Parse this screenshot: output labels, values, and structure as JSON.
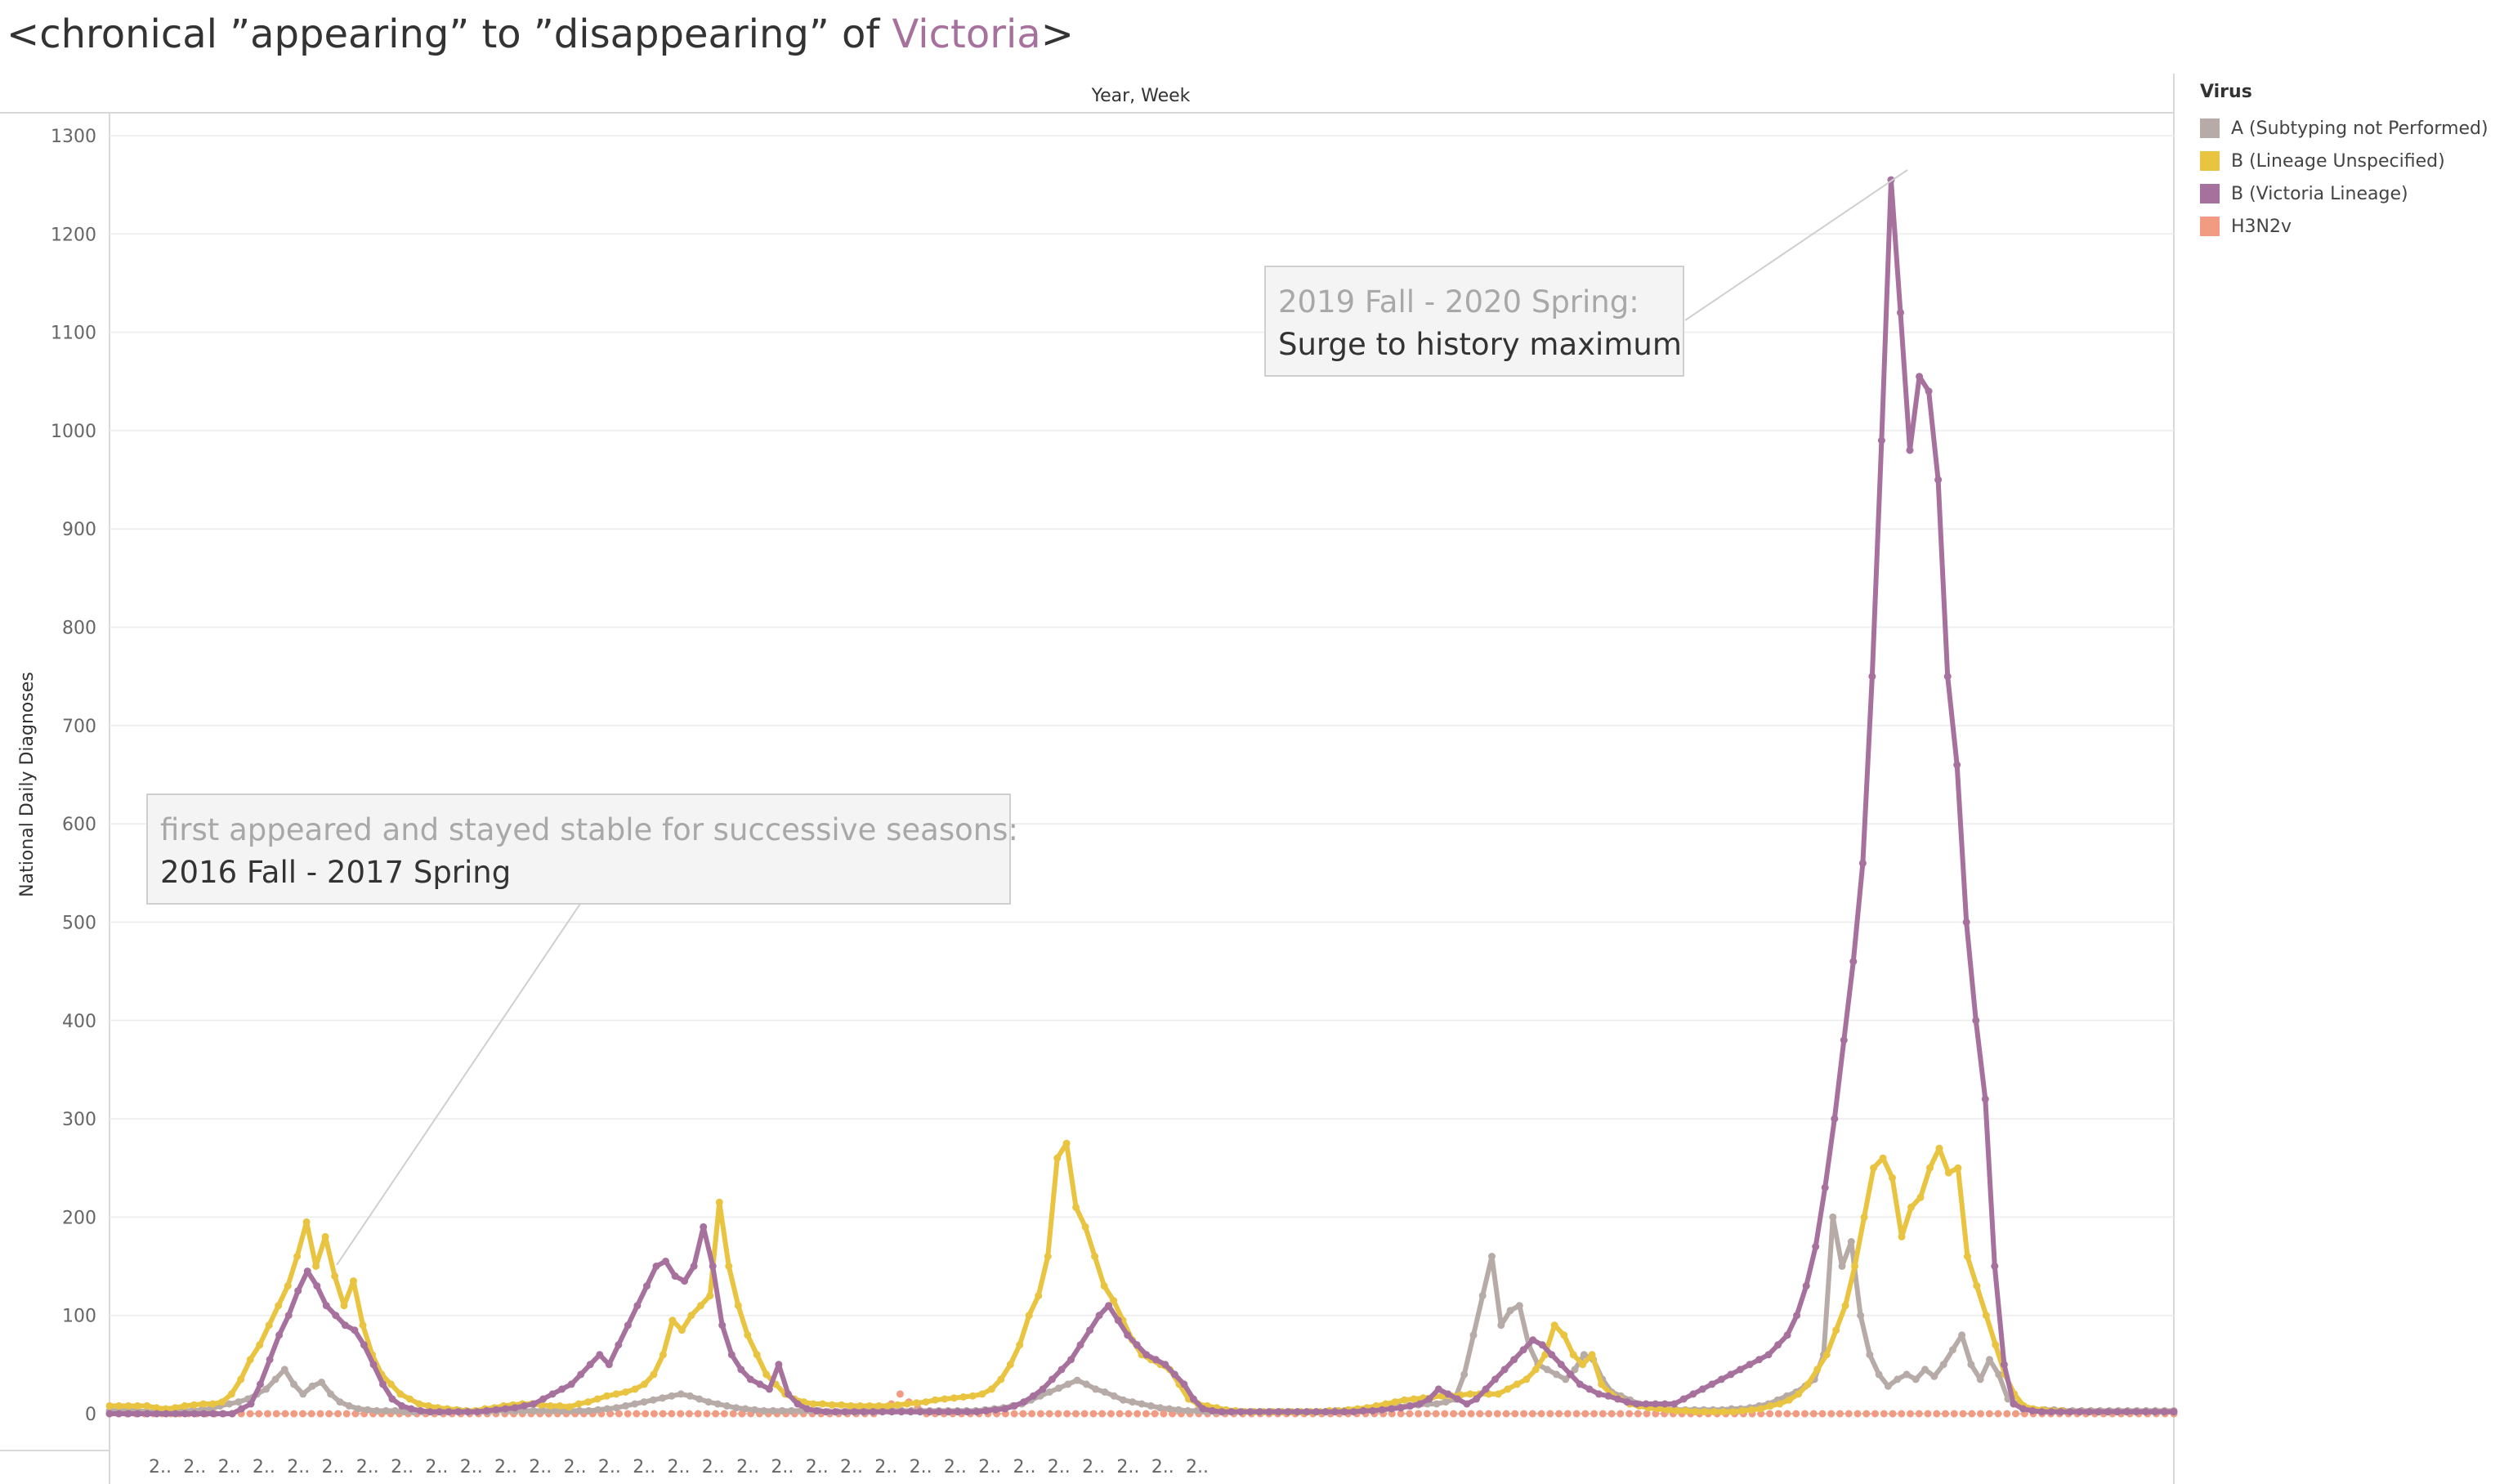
{
  "title": {
    "prefix": "<chronical ”appearing” to ”disappearing” of ",
    "highlight": "Victoria",
    "suffix": ">",
    "highlight_color": "#a7719e"
  },
  "legend": {
    "title": "Virus"
  },
  "annotations": {
    "a1_line1": "2019 Fall - 2020 Spring:",
    "a1_line2": "Surge to history maximum",
    "a2_line1": "first appeared and stayed stable for successive seasons:",
    "a2_line2": "2016 Fall - 2017 Spring"
  },
  "chart_data": {
    "type": "line",
    "title": "",
    "xlabel": "Year, Week",
    "ylabel": "National Daily Diagnoses",
    "ylim": [
      0,
      1300
    ],
    "yticks": [
      0,
      100,
      200,
      300,
      400,
      500,
      600,
      700,
      800,
      900,
      1000,
      1100,
      1200,
      1300
    ],
    "x_tick_label": "2..",
    "x_tick_count": 31,
    "grid": true,
    "legend_position": "right",
    "series": [
      {
        "name": "A (Subtyping not Performed)",
        "color": "#b7aba7",
        "values": [
          3,
          3,
          3,
          3,
          2,
          2,
          3,
          2,
          3,
          3,
          4,
          5,
          8,
          10,
          12,
          15,
          20,
          25,
          35,
          45,
          30,
          20,
          28,
          32,
          20,
          12,
          8,
          5,
          4,
          3,
          3,
          3,
          2,
          2,
          2,
          2,
          2,
          3,
          3,
          2,
          2,
          2,
          3,
          3,
          3,
          3,
          3,
          3,
          3,
          3,
          3,
          3,
          3,
          4,
          5,
          6,
          8,
          10,
          12,
          14,
          16,
          18,
          20,
          18,
          15,
          12,
          10,
          8,
          6,
          5,
          4,
          3,
          3,
          3,
          3,
          3,
          3,
          3,
          2,
          2,
          2,
          2,
          2,
          3,
          3,
          3,
          3,
          3,
          3,
          3,
          3,
          3,
          3,
          3,
          3,
          4,
          5,
          6,
          8,
          10,
          14,
          18,
          22,
          26,
          30,
          34,
          30,
          25,
          22,
          18,
          14,
          12,
          10,
          8,
          6,
          5,
          4,
          3,
          3,
          2,
          2,
          2,
          2,
          2,
          2,
          2,
          2,
          2,
          2,
          2,
          2,
          2,
          2,
          3,
          3,
          3,
          3,
          4,
          5,
          6,
          7,
          8,
          9,
          10,
          10,
          12,
          15,
          40,
          80,
          120,
          160,
          90,
          105,
          110,
          70,
          50,
          45,
          40,
          35,
          45,
          60,
          55,
          35,
          22,
          18,
          14,
          10,
          8,
          6,
          5,
          4,
          4,
          4,
          4,
          4,
          4,
          5,
          5,
          6,
          8,
          10,
          14,
          18,
          22,
          28,
          35,
          60,
          200,
          150,
          175,
          100,
          60,
          40,
          28,
          35,
          40,
          35,
          45,
          38,
          50,
          65,
          80,
          50,
          35,
          55,
          40,
          15,
          10,
          5,
          4,
          4,
          4,
          3,
          3,
          3,
          3,
          3,
          3,
          3,
          3,
          3,
          3,
          3,
          3,
          3
        ]
      },
      {
        "name": "B (Lineage Unspecified)",
        "color": "#e9c440",
        "values": [
          8,
          8,
          8,
          8,
          8,
          6,
          5,
          6,
          8,
          9,
          10,
          10,
          12,
          20,
          35,
          55,
          70,
          90,
          110,
          130,
          160,
          195,
          150,
          180,
          140,
          110,
          135,
          90,
          60,
          40,
          30,
          20,
          15,
          10,
          8,
          6,
          5,
          4,
          3,
          3,
          5,
          6,
          8,
          9,
          10,
          10,
          9,
          8,
          8,
          7,
          10,
          12,
          15,
          18,
          20,
          22,
          25,
          30,
          40,
          60,
          95,
          85,
          100,
          110,
          120,
          215,
          150,
          110,
          80,
          60,
          40,
          30,
          20,
          15,
          12,
          10,
          10,
          9,
          9,
          8,
          8,
          8,
          8,
          8,
          9,
          10,
          11,
          12,
          14,
          15,
          16,
          17,
          18,
          20,
          25,
          35,
          50,
          70,
          100,
          120,
          160,
          260,
          275,
          210,
          190,
          160,
          130,
          115,
          95,
          75,
          60,
          55,
          50,
          45,
          30,
          15,
          10,
          8,
          6,
          4,
          3,
          2,
          2,
          2,
          2,
          2,
          2,
          2,
          2,
          2,
          3,
          3,
          4,
          5,
          6,
          8,
          10,
          12,
          14,
          15,
          16,
          17,
          18,
          18,
          19,
          20,
          20,
          20,
          20,
          25,
          30,
          35,
          45,
          60,
          90,
          80,
          60,
          50,
          60,
          30,
          20,
          15,
          10,
          8,
          6,
          5,
          4,
          3,
          3,
          2,
          2,
          2,
          2,
          2,
          3,
          4,
          5,
          8,
          10,
          14,
          20,
          30,
          45,
          60,
          85,
          110,
          150,
          200,
          250,
          260,
          240,
          180,
          210,
          220,
          250,
          270,
          245,
          250,
          160,
          130,
          100,
          70,
          40,
          20,
          8,
          5,
          4,
          3,
          3,
          2,
          2,
          2,
          2,
          2,
          2,
          2,
          2,
          2,
          2,
          2,
          2
        ]
      },
      {
        "name": "B (Victoria Lineage)",
        "color": "#a7719e",
        "values": [
          0,
          0,
          0,
          0,
          0,
          0,
          0,
          0,
          0,
          0,
          0,
          0,
          0,
          0,
          5,
          10,
          30,
          55,
          80,
          100,
          125,
          145,
          130,
          110,
          100,
          90,
          85,
          70,
          50,
          30,
          15,
          8,
          5,
          3,
          2,
          2,
          2,
          2,
          2,
          2,
          3,
          4,
          5,
          6,
          8,
          10,
          15,
          20,
          25,
          30,
          40,
          50,
          60,
          50,
          70,
          90,
          110,
          130,
          150,
          155,
          140,
          135,
          150,
          190,
          150,
          90,
          60,
          45,
          35,
          30,
          25,
          50,
          20,
          10,
          5,
          3,
          2,
          2,
          2,
          2,
          2,
          2,
          2,
          2,
          2,
          2,
          2,
          2,
          2,
          2,
          2,
          2,
          2,
          3,
          4,
          5,
          8,
          12,
          18,
          25,
          35,
          45,
          55,
          70,
          85,
          100,
          110,
          95,
          80,
          70,
          60,
          55,
          50,
          40,
          30,
          15,
          5,
          3,
          2,
          2,
          2,
          2,
          2,
          2,
          2,
          2,
          2,
          2,
          2,
          2,
          2,
          2,
          2,
          3,
          3,
          4,
          5,
          6,
          8,
          10,
          15,
          25,
          20,
          15,
          10,
          15,
          25,
          35,
          45,
          55,
          65,
          75,
          70,
          60,
          50,
          40,
          30,
          25,
          20,
          18,
          15,
          12,
          10,
          10,
          10,
          10,
          10,
          15,
          20,
          25,
          30,
          35,
          40,
          45,
          50,
          55,
          60,
          70,
          80,
          100,
          130,
          170,
          230,
          300,
          380,
          460,
          560,
          750,
          990,
          1255,
          1120,
          980,
          1055,
          1040,
          950,
          750,
          660,
          500,
          400,
          320,
          150,
          50,
          10,
          5,
          3,
          2,
          2,
          2,
          2,
          2,
          2,
          2,
          2,
          2,
          2,
          2,
          2,
          2,
          2,
          2
        ]
      },
      {
        "name": "H3N2v",
        "color": "#f29b83",
        "values": [
          0,
          0,
          0,
          0,
          0,
          0,
          0,
          0,
          0,
          0,
          0,
          0,
          0,
          0,
          0,
          0,
          0,
          0,
          0,
          0,
          0,
          0,
          0,
          0,
          0,
          0,
          0,
          0,
          0,
          0,
          0,
          0,
          0,
          0,
          0,
          0,
          0,
          0,
          0,
          0,
          0,
          0,
          0,
          0,
          0,
          0,
          0,
          0,
          0,
          0,
          0,
          0,
          0,
          0,
          0,
          0,
          0,
          0,
          0,
          0,
          0,
          0,
          0,
          0,
          0,
          0,
          0,
          0,
          0,
          0,
          0,
          0,
          0,
          0,
          0,
          0,
          0,
          0,
          0,
          0,
          0,
          0,
          0,
          0,
          0,
          0,
          0,
          0,
          5,
          10,
          20,
          12,
          6,
          0,
          0,
          0,
          0,
          0,
          0,
          0,
          0,
          0,
          0,
          0,
          0,
          0,
          0,
          0,
          0,
          0,
          0,
          0,
          0,
          0,
          0,
          0,
          0,
          0,
          0,
          0,
          0,
          0,
          0,
          0,
          0,
          0,
          0,
          0,
          0,
          0,
          0,
          0,
          0,
          0,
          0,
          0,
          0,
          0,
          0,
          0,
          0,
          0,
          0,
          0,
          0,
          0,
          0,
          0,
          0,
          0,
          0,
          0,
          0,
          0,
          0,
          0,
          0,
          0,
          0,
          0,
          0,
          0,
          0,
          0,
          0,
          0,
          0,
          0,
          0,
          0,
          0,
          0,
          0,
          0,
          0,
          0,
          0,
          0,
          0,
          0,
          0,
          0,
          0,
          0,
          0,
          0,
          0,
          0,
          0,
          0,
          0,
          0,
          0,
          0,
          0,
          0,
          0,
          0,
          0,
          0,
          0,
          0,
          0,
          0,
          0,
          0,
          0,
          0,
          0,
          0,
          0,
          0,
          0,
          0,
          0,
          0,
          0,
          0,
          0,
          0,
          0,
          0,
          0,
          0,
          0,
          0,
          0,
          0,
          0,
          0,
          0,
          0,
          0,
          0,
          0,
          0
        ]
      }
    ]
  }
}
